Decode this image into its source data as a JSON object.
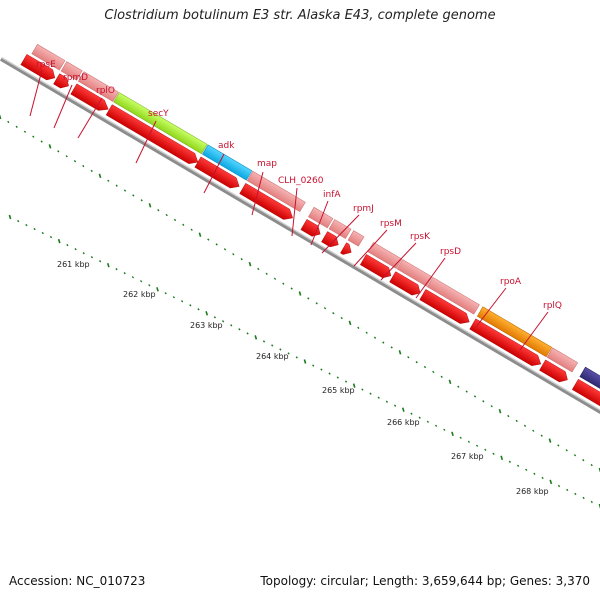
{
  "title": "Clostridium botulinum E3 str. Alaska E43, complete genome",
  "accession_text": "Accession: NC_010723",
  "summary_text": "Topology: circular; Length: 3,659,644 bp; Genes: 3,370",
  "colors": {
    "gene_label": "#c8102e",
    "gene_default": "#f08a8a",
    "cds_arrow": "#ee0000",
    "backbone": "#888888",
    "tick": "#1a7a1a"
  },
  "gene_labels": [
    "rpsE",
    "rpmD",
    "rplO",
    "secY",
    "adk",
    "map",
    "CLH_0260",
    "infA",
    "rpmJ",
    "rpsM",
    "rpsK",
    "rpsD",
    "rpoA",
    "rplQ"
  ],
  "kbp_labels": [
    "261 kbp",
    "262 kbp",
    "263 kbp",
    "264 kbp",
    "265 kbp",
    "266 kbp",
    "267 kbp",
    "268 kbp"
  ]
}
